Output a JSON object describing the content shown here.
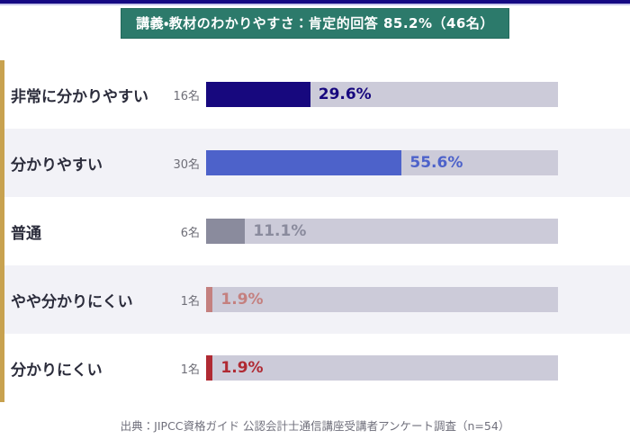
{
  "title_banner": {
    "text": "講義・教材のわかりやすさ：肯定的回答 85.2%（46名）",
    "bg_color": "#2c7a6b",
    "text_color": "#ffffff"
  },
  "rows": [
    {
      "label": "非常に分かりやすい",
      "count": "16名",
      "percent": 29.6,
      "percent_label": "29.6%",
      "color": "#17087e"
    },
    {
      "label": "分かりやすい",
      "count": "30名",
      "percent": 55.6,
      "percent_label": "55.6%",
      "color": "#4d62ca"
    },
    {
      "label": "普通",
      "count": "6名",
      "percent": 11.1,
      "percent_label": "11.1%",
      "color": "#8a8b9d"
    },
    {
      "label": "やや分かりにくい",
      "count": "1名",
      "percent": 1.9,
      "percent_label": "1.9%",
      "color": "#c4807f"
    },
    {
      "label": "分かりにくい",
      "count": "1名",
      "percent": 1.9,
      "percent_label": "1.9%",
      "color": "#b02a33"
    }
  ],
  "footer": {
    "source": "出典：JIPCC資格ガイド 公認会計士通信講座受講者アンケート調査（n=54）"
  },
  "style_colors": {
    "track": "#cccbd9",
    "left_strip": "#c8a24f",
    "top_border": "#150983",
    "row_band_alt": "#f2f2f7"
  },
  "chart_data": {
    "type": "bar",
    "orientation": "horizontal",
    "title": "講義・教材のわかりやすさ：肯定的回答 85.2%（46名）",
    "categories": [
      "非常に分かりやすい",
      "分かりやすい",
      "普通",
      "やや分かりにくい",
      "分かりにくい"
    ],
    "values": [
      29.6,
      55.6,
      11.1,
      1.9,
      1.9
    ],
    "counts": [
      16,
      30,
      6,
      1,
      1
    ],
    "value_unit": "%",
    "count_unit": "名",
    "n": 54,
    "xlim": [
      0,
      100
    ],
    "grid": false,
    "legend": false,
    "bar_colors": [
      "#17087e",
      "#4d62ca",
      "#8a8b9d",
      "#c4807f",
      "#b02a33"
    ],
    "source": "出典：JIPCC資格ガイド 公認会計士通信講座受講者アンケート調査（n=54）"
  }
}
